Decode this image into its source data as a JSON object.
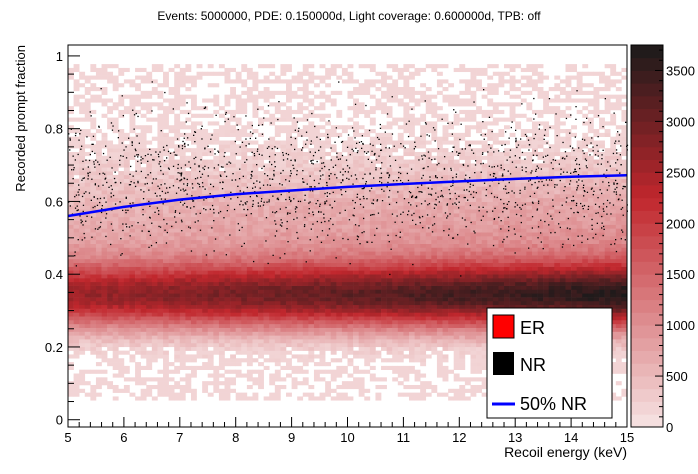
{
  "chart_data": {
    "type": "heatmap",
    "title": "Events: 5000000, PDE: 0.150000d, Light coverage: 0.600000d, TPB: off",
    "xlabel": "Recoil energy (keV)",
    "ylabel": "Recorded prompt fraction",
    "xlim": [
      5,
      15
    ],
    "ylim": [
      -0.02,
      1.03
    ],
    "x_ticks": [
      "5",
      "6",
      "7",
      "8",
      "9",
      "10",
      "11",
      "12",
      "13",
      "14",
      "15"
    ],
    "y_ticks": [
      "0",
      "0.2",
      "0.4",
      "0.6",
      "0.8",
      "1"
    ],
    "colorbar": {
      "range": [
        0,
        3750
      ],
      "ticks": [
        "0",
        "500",
        "1000",
        "1500",
        "2000",
        "2500",
        "3000",
        "3500"
      ],
      "color_low": "#f6e4e4",
      "color_mid": "#c1272d",
      "color_high": "#1a1a1a"
    },
    "legend": {
      "position": "bottom-right",
      "entries": [
        {
          "label": "ER",
          "color": "#ff0000",
          "style": "box"
        },
        {
          "label": "NR",
          "color": "#000000",
          "style": "box"
        },
        {
          "label": "50% NR",
          "color": "#0000ff",
          "style": "line"
        }
      ]
    },
    "series": [
      {
        "name": "50% NR",
        "color": "#0000ff",
        "x": [
          5,
          6,
          7,
          8,
          9,
          10,
          11,
          12,
          13,
          14,
          15
        ],
        "y": [
          0.56,
          0.585,
          0.605,
          0.62,
          0.63,
          0.64,
          0.648,
          0.655,
          0.662,
          0.668,
          0.672
        ]
      }
    ]
  }
}
